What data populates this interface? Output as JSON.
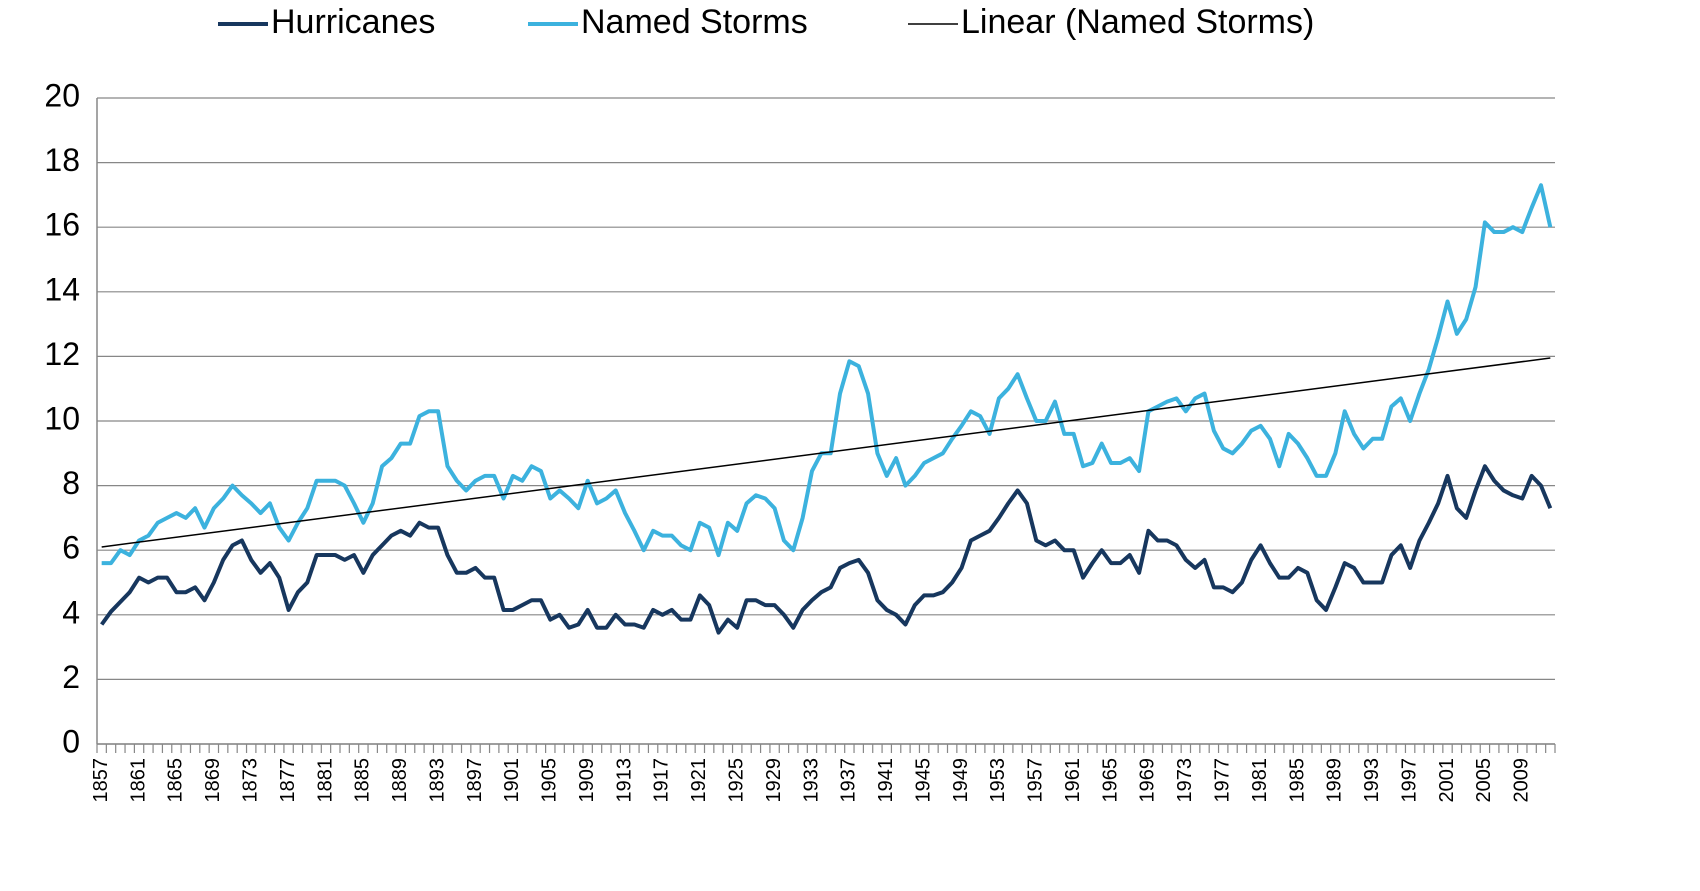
{
  "chart_data": {
    "type": "line",
    "categories": [
      "1857",
      null,
      null,
      null,
      "1861",
      null,
      null,
      null,
      "1865",
      null,
      null,
      null,
      "1869",
      null,
      null,
      null,
      "1873",
      null,
      null,
      null,
      "1877",
      null,
      null,
      null,
      "1881",
      null,
      null,
      null,
      "1885",
      null,
      null,
      null,
      "1889",
      null,
      null,
      null,
      "1893",
      null,
      null,
      null,
      "1897",
      null,
      null,
      null,
      "1901",
      null,
      null,
      null,
      "1905",
      null,
      null,
      null,
      "1909",
      null,
      null,
      null,
      "1913",
      null,
      null,
      null,
      "1917",
      null,
      null,
      null,
      "1921",
      null,
      null,
      null,
      "1925",
      null,
      null,
      null,
      "1929",
      null,
      null,
      null,
      "1933",
      null,
      null,
      null,
      "1937",
      null,
      null,
      null,
      "1941",
      null,
      null,
      null,
      "1945",
      null,
      null,
      null,
      "1949",
      null,
      null,
      null,
      "1953",
      null,
      null,
      null,
      "1957",
      null,
      null,
      null,
      "1961",
      null,
      null,
      null,
      "1965",
      null,
      null,
      null,
      "1969",
      null,
      null,
      null,
      "1973",
      null,
      null,
      null,
      "1977",
      null,
      null,
      null,
      "1981",
      null,
      null,
      null,
      "1985",
      null,
      null,
      null,
      "1989",
      null,
      null,
      null,
      "1993",
      null,
      null,
      null,
      "1997",
      null,
      null,
      null,
      "2001",
      null,
      null,
      null,
      "2005",
      null,
      null,
      null,
      "2009",
      null,
      null,
      null
    ],
    "series": [
      {
        "name": "Hurricanes",
        "color": "#17375e",
        "values": [
          3.7,
          4.1,
          4.4,
          4.7,
          5.15,
          5.0,
          5.15,
          5.15,
          4.7,
          4.7,
          4.85,
          4.45,
          5.0,
          5.7,
          6.15,
          6.3,
          5.7,
          5.3,
          5.6,
          5.15,
          4.15,
          4.7,
          5.0,
          5.85,
          5.85,
          5.85,
          5.7,
          5.85,
          5.3,
          5.85,
          6.15,
          6.45,
          6.6,
          6.45,
          6.85,
          6.7,
          6.7,
          5.85,
          5.3,
          5.3,
          5.45,
          5.15,
          5.15,
          4.15,
          4.15,
          4.3,
          4.45,
          4.45,
          3.85,
          4.0,
          3.6,
          3.7,
          4.15,
          3.6,
          3.6,
          4.0,
          3.7,
          3.7,
          3.6,
          4.15,
          4.0,
          4.15,
          3.85,
          3.85,
          4.6,
          4.3,
          3.45,
          3.85,
          3.6,
          4.45,
          4.45,
          4.3,
          4.3,
          4.0,
          3.6,
          4.15,
          4.45,
          4.7,
          4.85,
          5.45,
          5.6,
          5.7,
          5.3,
          4.45,
          4.15,
          4.0,
          3.7,
          4.3,
          4.6,
          4.6,
          4.7,
          5.0,
          5.45,
          6.3,
          6.45,
          6.6,
          7.0,
          7.45,
          7.85,
          7.45,
          6.3,
          6.15,
          6.3,
          6.0,
          6.0,
          5.15,
          5.6,
          6.0,
          5.6,
          5.6,
          5.85,
          5.3,
          6.6,
          6.3,
          6.3,
          6.15,
          5.7,
          5.45,
          5.7,
          4.85,
          4.85,
          4.7,
          5.0,
          5.7,
          6.15,
          5.6,
          5.15,
          5.15,
          5.45,
          5.3,
          4.45,
          4.15,
          4.85,
          5.6,
          5.45,
          5.0,
          5.0,
          5.0,
          5.85,
          6.15,
          5.45,
          6.3,
          6.85,
          7.45,
          8.3,
          7.3,
          7.0,
          7.85,
          8.6,
          8.15,
          7.85,
          7.7,
          7.6,
          8.3,
          8.0,
          7.3
        ]
      },
      {
        "name": "Named Storms",
        "color": "#3cb2de",
        "values": [
          5.6,
          5.6,
          6.0,
          5.85,
          6.3,
          6.45,
          6.85,
          7.0,
          7.15,
          7.0,
          7.3,
          6.7,
          7.3,
          7.6,
          8.0,
          7.7,
          7.45,
          7.15,
          7.45,
          6.7,
          6.3,
          6.85,
          7.3,
          8.15,
          8.15,
          8.15,
          8.0,
          7.45,
          6.85,
          7.45,
          8.6,
          8.85,
          9.3,
          9.3,
          10.15,
          10.3,
          10.3,
          8.6,
          8.15,
          7.85,
          8.15,
          8.3,
          8.3,
          7.6,
          8.3,
          8.15,
          8.6,
          8.45,
          7.6,
          7.85,
          7.6,
          7.3,
          8.15,
          7.45,
          7.6,
          7.85,
          7.15,
          6.6,
          6.0,
          6.6,
          6.45,
          6.45,
          6.15,
          6.0,
          6.85,
          6.7,
          5.85,
          6.85,
          6.6,
          7.45,
          7.7,
          7.6,
          7.3,
          6.3,
          6.0,
          7.0,
          8.45,
          9.0,
          9.0,
          10.85,
          11.85,
          11.7,
          10.85,
          9.0,
          8.3,
          8.85,
          8.0,
          8.3,
          8.7,
          8.85,
          9.0,
          9.45,
          9.85,
          10.3,
          10.15,
          9.6,
          10.7,
          11.0,
          11.45,
          10.7,
          10.0,
          10.0,
          10.6,
          9.6,
          9.6,
          8.6,
          8.7,
          9.3,
          8.7,
          8.7,
          8.85,
          8.45,
          10.3,
          10.45,
          10.6,
          10.7,
          10.3,
          10.7,
          10.85,
          9.7,
          9.15,
          9.0,
          9.3,
          9.7,
          9.85,
          9.45,
          8.6,
          9.6,
          9.3,
          8.85,
          8.3,
          8.3,
          9.0,
          10.3,
          9.6,
          9.15,
          9.45,
          9.45,
          10.45,
          10.7,
          10.0,
          10.85,
          11.6,
          12.6,
          13.7,
          12.7,
          13.15,
          14.15,
          16.15,
          15.85,
          15.85,
          16.0,
          15.85,
          16.6,
          17.3,
          16.0
        ]
      }
    ],
    "trendline": {
      "name": "Linear (Named Storms)",
      "color": "#000000",
      "start": 6.1,
      "end": 11.95
    },
    "ylim": [
      0,
      20
    ],
    "yticks": [
      0,
      2,
      4,
      6,
      8,
      10,
      12,
      14,
      16,
      18,
      20
    ],
    "grid": true,
    "legend": "top"
  }
}
